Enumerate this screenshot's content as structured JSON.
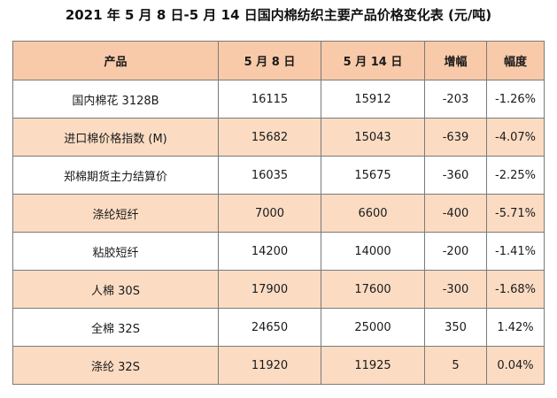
{
  "title": "2021 年 5 月 8 日-5 月 14 日国内棉纺织主要产品价格变化表 (元/吨)",
  "table": {
    "headers": [
      "产品",
      "5 月 8 日",
      "5 月 14 日",
      "增幅",
      "幅度"
    ],
    "rows": [
      [
        "国内棉花 3128B",
        "16115",
        "15912",
        "-203",
        "-1.26%"
      ],
      [
        "进口棉价格指数 (M)",
        "15682",
        "15043",
        "-639",
        "-4.07%"
      ],
      [
        "郑棉期货主力结算价",
        "16035",
        "15675",
        "-360",
        "-2.25%"
      ],
      [
        "涤纶短纤",
        "7000",
        "6600",
        "-400",
        "-5.71%"
      ],
      [
        "粘胶短纤",
        "14200",
        "14000",
        "-200",
        "-1.41%"
      ],
      [
        "人棉 30S",
        "17900",
        "17600",
        "-300",
        "-1.68%"
      ],
      [
        "全棉 32S",
        "24650",
        "25000",
        "350",
        "1.42%"
      ],
      [
        "涤纶 32S",
        "11920",
        "11925",
        "5",
        "0.04%"
      ]
    ]
  },
  "colors": {
    "header_bg": "#f8caa9",
    "stripe_bg": "#fbdcc3",
    "border": "#7a7a7a"
  }
}
